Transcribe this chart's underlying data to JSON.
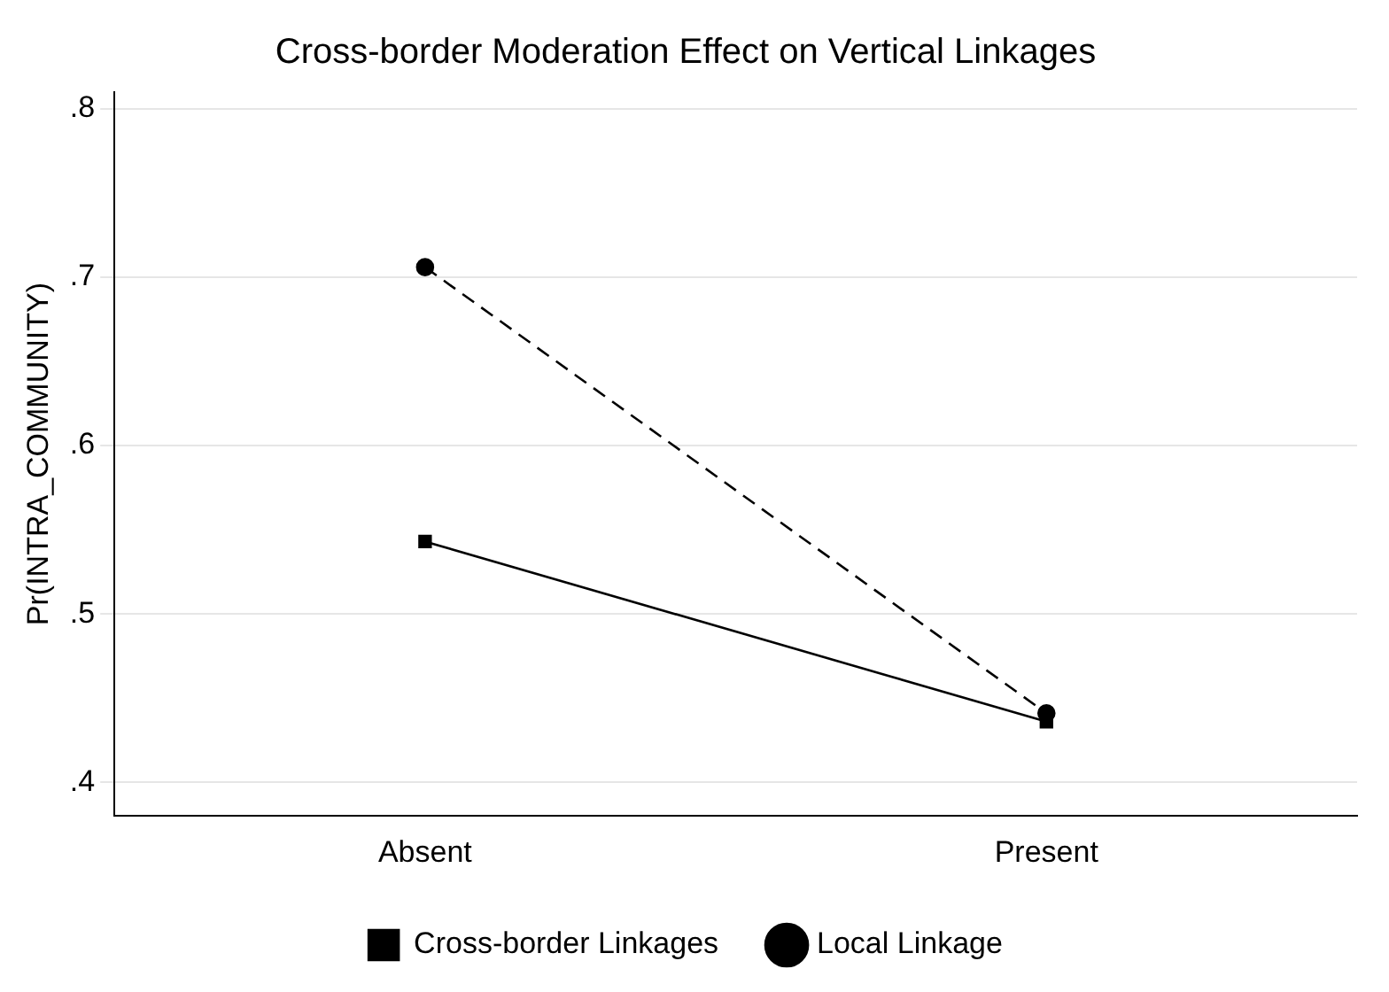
{
  "chart_data": {
    "type": "line",
    "title": "Cross-border Moderation Effect on Vertical Linkages",
    "ylabel": "Pr(INTRA_COMMUNITY)",
    "categories": [
      "Absent",
      "Present"
    ],
    "series": [
      {
        "name": "Local Linkage",
        "color": "#000000",
        "values": [
          0.706,
          0.441
        ],
        "marker": "circle",
        "line_style": "dashed"
      },
      {
        "name": "Cross-border Linkages",
        "color": "#000000",
        "values": [
          0.543,
          0.436
        ],
        "marker": "square",
        "line_style": "solid"
      }
    ],
    "ylim": [
      0.38,
      0.81
    ],
    "yticks": [
      {
        "value": 0.4,
        "label": ".4"
      },
      {
        "value": 0.5,
        "label": ".5"
      },
      {
        "value": 0.6,
        "label": ".6"
      },
      {
        "value": 0.7,
        "label": ".7"
      },
      {
        "value": 0.8,
        "label": ".8"
      }
    ],
    "grid": "y",
    "legend": "bottom"
  }
}
